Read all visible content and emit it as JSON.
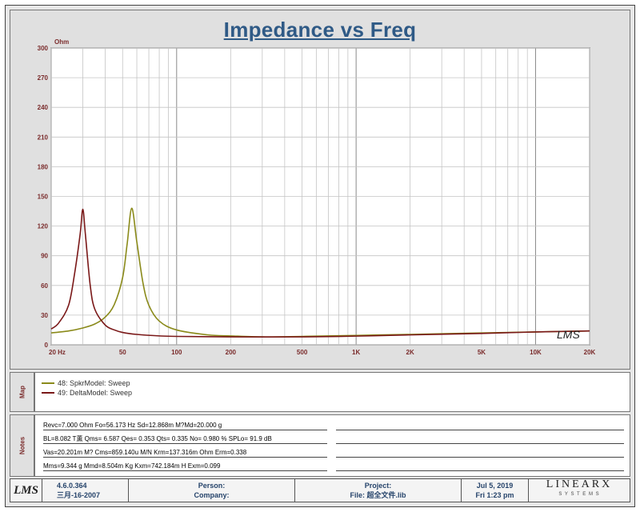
{
  "title": "Impedance vs Freq",
  "chart_data": {
    "type": "line",
    "title": "Impedance vs Freq",
    "ylabel": "Ohm",
    "xscale": "log",
    "xlim": [
      20,
      20000
    ],
    "ylim": [
      0,
      300
    ],
    "y_ticks": [
      "0",
      "30",
      "60",
      "90",
      "120",
      "150",
      "180",
      "210",
      "240",
      "270",
      "300"
    ],
    "y_tick_values": [
      0,
      30,
      60,
      90,
      120,
      150,
      180,
      210,
      240,
      270,
      300
    ],
    "x_tick_labels": [
      "20  Hz",
      "50",
      "100",
      "200",
      "500",
      "1K",
      "2K",
      "5K",
      "10K",
      "20K"
    ],
    "x_tick_values": [
      20,
      50,
      100,
      200,
      500,
      1000,
      2000,
      5000,
      10000,
      20000
    ],
    "grid": true,
    "series": [
      {
        "name": "48: SpkrModel: Sweep",
        "color": "#8a8a1a",
        "x": [
          20,
          25,
          30,
          35,
          40,
          45,
          50,
          53,
          56.2,
          60,
          65,
          70,
          80,
          100,
          150,
          200,
          300,
          500,
          1000,
          2000,
          5000,
          10000,
          20000
        ],
        "y": [
          12,
          14,
          17,
          21,
          28,
          41,
          68,
          102,
          138,
          104,
          62,
          40,
          24,
          15,
          10,
          9,
          8,
          8.5,
          9.5,
          10.5,
          12,
          13,
          14
        ]
      },
      {
        "name": "49: DeltaModel: Sweep",
        "color": "#7a1818",
        "x": [
          20,
          22,
          25,
          27,
          29,
          30,
          31,
          33,
          35,
          40,
          45,
          50,
          60,
          80,
          100,
          200,
          500,
          1000,
          2000,
          5000,
          10000,
          20000
        ],
        "y": [
          16,
          22,
          40,
          72,
          112,
          137,
          112,
          60,
          36,
          20,
          15,
          12.5,
          10.5,
          9,
          8.5,
          8,
          8,
          8.8,
          10,
          11.5,
          13,
          14
        ]
      }
    ]
  },
  "logo_watermark": "LMS",
  "map_label": "Map",
  "legend": [
    "48: SpkrModel: Sweep",
    "49: DeltaModel: Sweep"
  ],
  "notes_label": "Notes",
  "notes": [
    "Revc=7.000 Ohm  Fo=56.173 Hz  Sd=12.868m M?Md=20.000 g",
    "BL=8.082 T薫  Qms= 6.587  Qes= 0.353  Qts= 0.335  No= 0.980 %  SPLo= 91.9 dB",
    "Vas=20.201m M? Cms=859.140u M/N  Krm=137.316m Ohm  Erm=0.338",
    "Mms=9.344 g  Mmd=8.504m Kg  Kxm=742.184m H  Exm=0.099"
  ],
  "footer": {
    "logo": "LMS",
    "version": "4.6.0.364",
    "version_date": "三月-16-2007",
    "person_label": "Person:",
    "company_label": "Company:",
    "project_label": "Project:",
    "file_label": "File: 超全文件.lib",
    "date": "Jul  5, 2019",
    "time": "Fri  1:23 pm",
    "brand": "LINEARX",
    "brand_sub": "S Y S T E M S"
  }
}
